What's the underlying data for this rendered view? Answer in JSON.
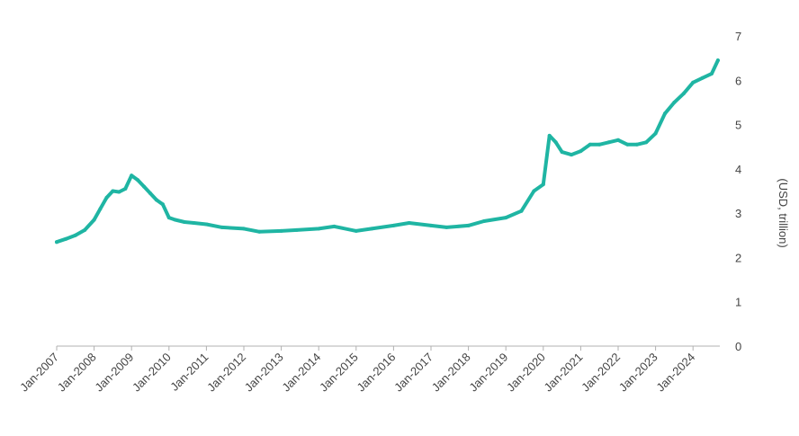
{
  "chart_data": {
    "type": "line",
    "title": "",
    "xlabel": "",
    "ylabel": "(USD, trillion)",
    "ylim": [
      0,
      7
    ],
    "yticks": [
      "0",
      "1",
      "2",
      "3",
      "4",
      "5",
      "6",
      "7"
    ],
    "xticks": [
      "Jan-2007",
      "Jan-2008",
      "Jan-2009",
      "Jan-2010",
      "Jan-2011",
      "Jan-2012",
      "Jan-2013",
      "Jan-2014",
      "Jan-2015",
      "Jan-2016",
      "Jan-2017",
      "Jan-2018",
      "Jan-2019",
      "Jan-2020",
      "Jan-2021",
      "Jan-2022",
      "Jan-2023",
      "Jan-2024"
    ],
    "grid": false,
    "legend": "none",
    "line_color": "#1fb5a3",
    "axis_color": "#b0b0b0",
    "series": [
      {
        "x": [
          "2007-01",
          "2007-04",
          "2007-07",
          "2007-10",
          "2008-01",
          "2008-03",
          "2008-05",
          "2008-07",
          "2008-09",
          "2008-11",
          "2009-01",
          "2009-03",
          "2009-05",
          "2009-07",
          "2009-09",
          "2009-11",
          "2010-01",
          "2010-03",
          "2010-06",
          "2010-09",
          "2011-01",
          "2011-06",
          "2012-01",
          "2012-06",
          "2013-01",
          "2013-06",
          "2014-01",
          "2014-06",
          "2015-01",
          "2015-06",
          "2016-01",
          "2016-06",
          "2017-01",
          "2017-06",
          "2018-01",
          "2018-06",
          "2019-01",
          "2019-06",
          "2019-10",
          "2020-01",
          "2020-03",
          "2020-05",
          "2020-07",
          "2020-10",
          "2021-01",
          "2021-04",
          "2021-07",
          "2021-10",
          "2022-01",
          "2022-04",
          "2022-07",
          "2022-10",
          "2023-01",
          "2023-04",
          "2023-07",
          "2023-10",
          "2024-01",
          "2024-04",
          "2024-07",
          "2024-09"
        ],
        "values": [
          2.35,
          2.42,
          2.5,
          2.62,
          2.85,
          3.1,
          3.35,
          3.5,
          3.48,
          3.55,
          3.85,
          3.75,
          3.6,
          3.45,
          3.3,
          3.2,
          2.9,
          2.85,
          2.8,
          2.78,
          2.75,
          2.68,
          2.65,
          2.58,
          2.6,
          2.62,
          2.65,
          2.7,
          2.6,
          2.65,
          2.72,
          2.78,
          2.72,
          2.68,
          2.72,
          2.82,
          2.9,
          3.05,
          3.5,
          3.65,
          4.75,
          4.6,
          4.38,
          4.32,
          4.4,
          4.55,
          4.55,
          4.6,
          4.65,
          4.55,
          4.55,
          4.6,
          4.8,
          5.25,
          5.5,
          5.7,
          5.95,
          6.05,
          6.15,
          6.45
        ]
      }
    ]
  }
}
